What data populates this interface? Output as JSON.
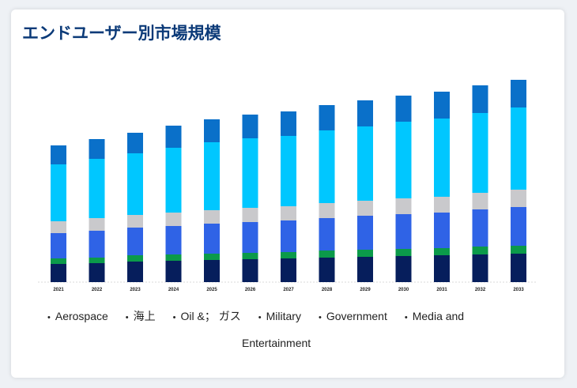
{
  "title": "エンドユーザー別市場規模",
  "chart_data": {
    "type": "bar",
    "stacked": true,
    "title": "",
    "xlabel": "",
    "ylabel": "",
    "categories": [
      "2021",
      "2022",
      "2023",
      "2024",
      "2025",
      "2026",
      "2027",
      "2028",
      "2029",
      "2030",
      "2031",
      "2032",
      "2033"
    ],
    "series": [
      {
        "name": "Aerospace",
        "color": "#061e5c",
        "values": [
          23,
          24,
          26,
          27,
          28,
          29,
          30,
          31,
          32,
          33,
          34,
          35,
          36
        ]
      },
      {
        "name": "海上",
        "color": "#0b9a4a",
        "values": [
          7,
          7,
          8,
          8,
          8,
          8,
          8,
          9,
          9,
          9,
          9,
          10,
          10
        ]
      },
      {
        "name": "Oil &； ガス",
        "color": "#2f63e6",
        "values": [
          32,
          34,
          35,
          36,
          38,
          39,
          40,
          41,
          43,
          44,
          45,
          47,
          49
        ]
      },
      {
        "name": "Military",
        "color": "#c9c9cc",
        "values": [
          15,
          16,
          16,
          17,
          17,
          18,
          18,
          19,
          19,
          20,
          20,
          21,
          22
        ]
      },
      {
        "name": "Government",
        "color": "#00c7ff",
        "values": [
          72,
          75,
          78,
          82,
          86,
          88,
          89,
          92,
          94,
          97,
          99,
          101,
          104
        ]
      },
      {
        "name": "Media and Entertainment",
        "color": "#0a70c9",
        "values": [
          24,
          25,
          26,
          28,
          29,
          30,
          31,
          32,
          33,
          33,
          34,
          35,
          35
        ]
      }
    ],
    "ylim": [
      0,
      260
    ],
    "grid": false,
    "legend": "bottom"
  },
  "legend": {
    "items": [
      "Aerospace",
      "海上",
      "Oil &； ガス",
      "Military",
      "Government",
      "Media and"
    ],
    "wrap": "Entertainment"
  }
}
